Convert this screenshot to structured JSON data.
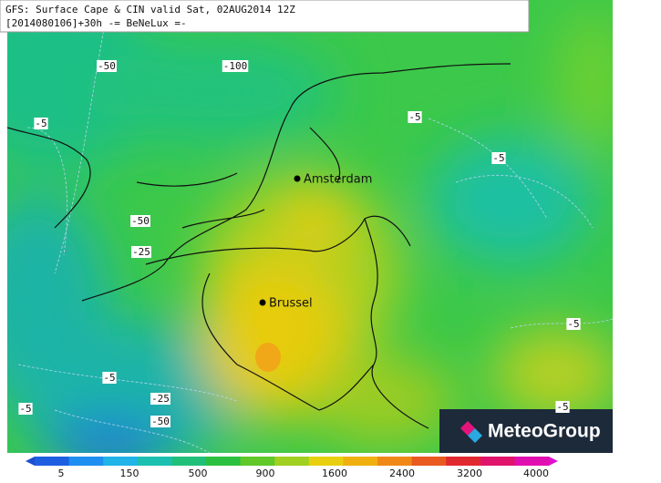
{
  "header": {
    "line1": "GFS: Surface Cape & CIN valid Sat, 02AUG2014 12Z",
    "line2": "[2014080106]+30h -= BeNeLux =-"
  },
  "cities": [
    "Amsterdam",
    "Brussel"
  ],
  "contour_labels": [
    "-50",
    "-100",
    "-5",
    "-5",
    "-5",
    "-50",
    "-25",
    "-5",
    "-5",
    "-25",
    "-50",
    "-5",
    "-5"
  ],
  "colorbar": {
    "ticks": [
      5,
      150,
      500,
      900,
      1600,
      2400,
      3200,
      4000
    ]
  },
  "logo": "MeteoGroup"
}
